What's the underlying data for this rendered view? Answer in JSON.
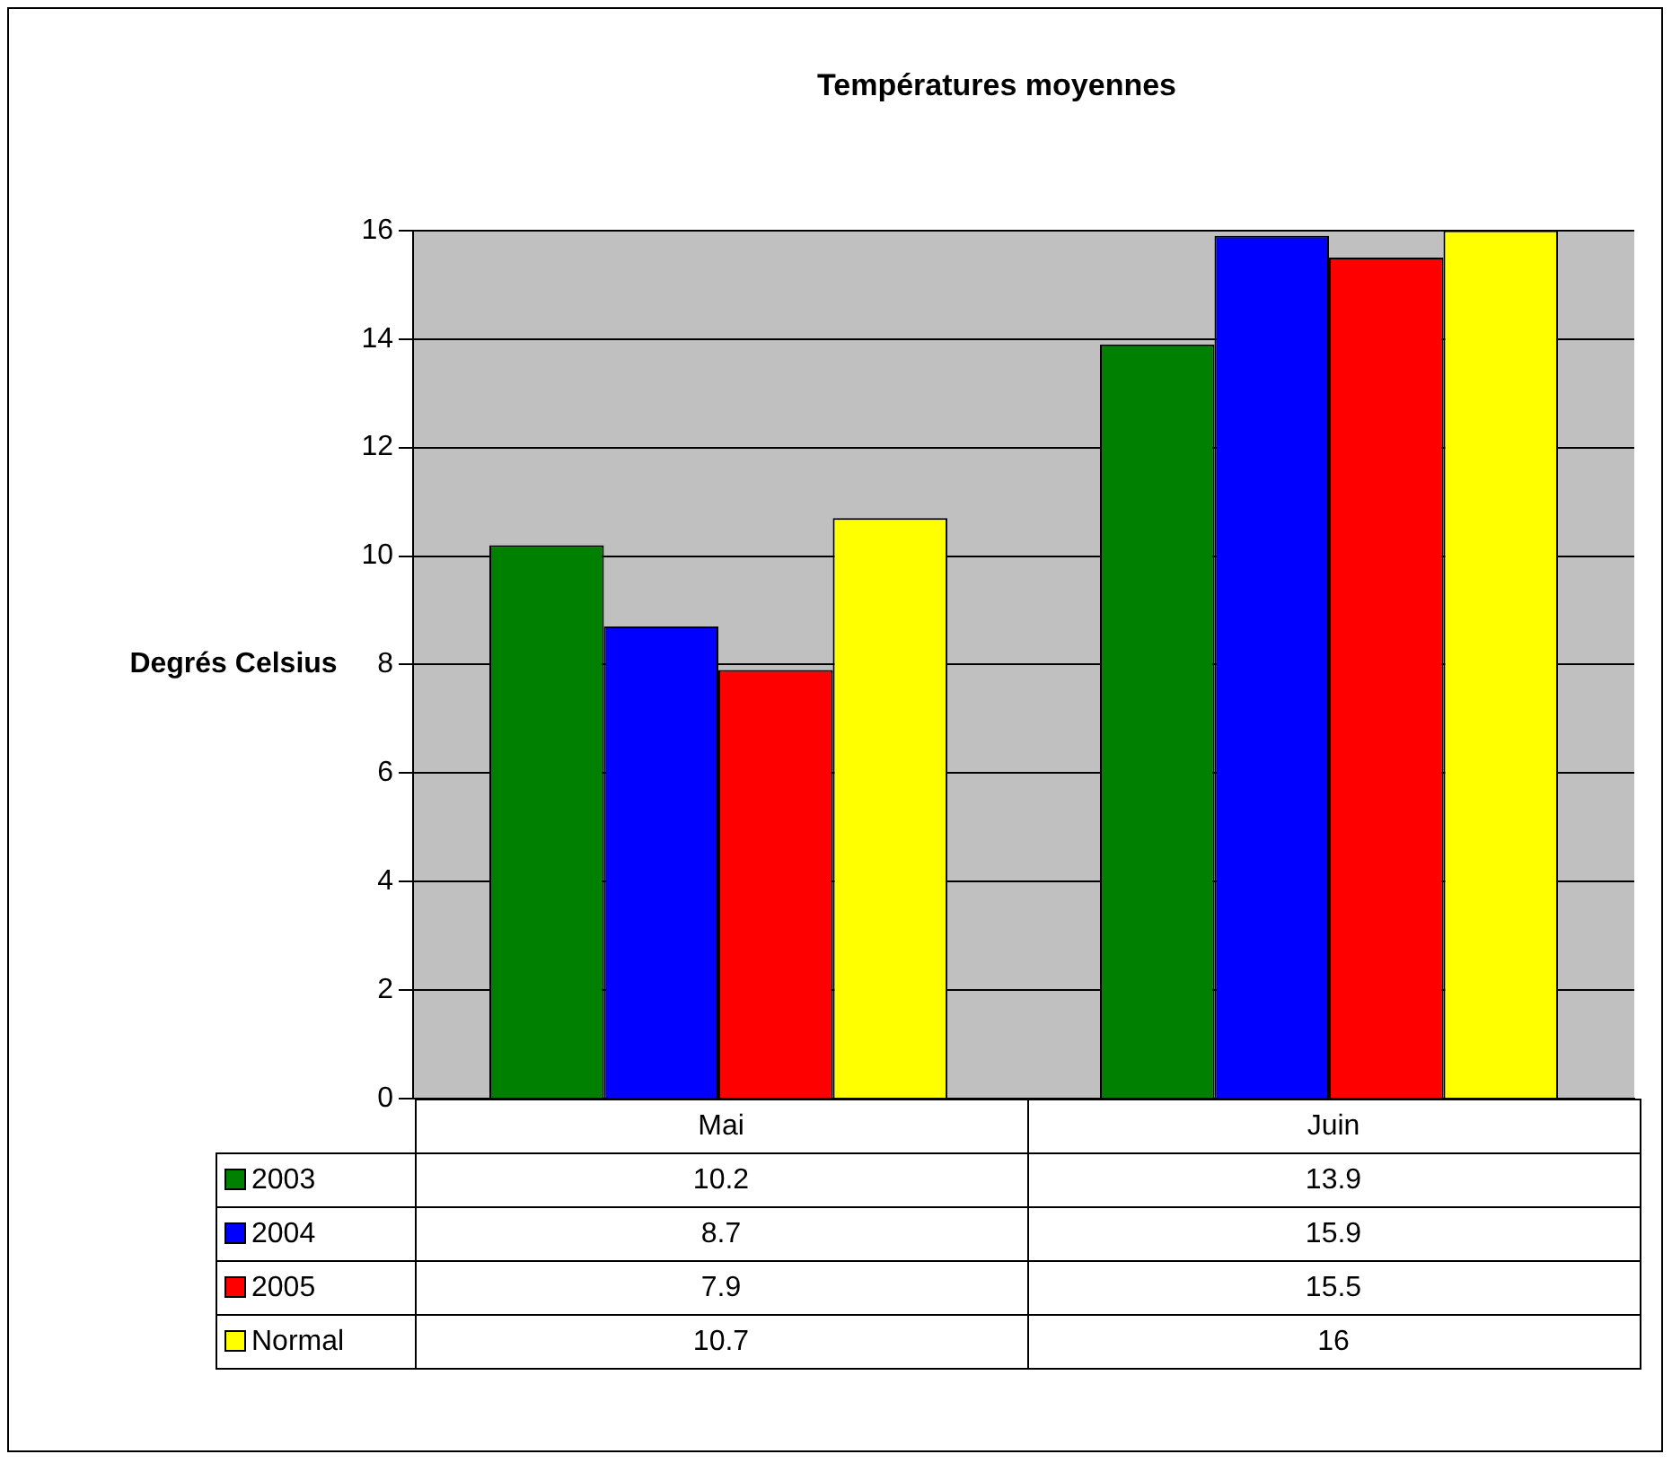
{
  "chart_data": {
    "type": "bar",
    "title": "Températures moyennes",
    "ylabel": "Degrés Celsius",
    "categories": [
      "Mai",
      "Juin"
    ],
    "series": [
      {
        "name": "2003",
        "color": "#008000",
        "values": [
          10.2,
          13.9
        ]
      },
      {
        "name": "2004",
        "color": "#0000ff",
        "values": [
          8.7,
          15.9
        ]
      },
      {
        "name": "2005",
        "color": "#ff0000",
        "values": [
          7.9,
          15.5
        ]
      },
      {
        "name": "Normal",
        "color": "#ffff00",
        "values": [
          10.7,
          16
        ]
      }
    ],
    "ylim": [
      0,
      16
    ],
    "yticks": [
      0,
      2,
      4,
      6,
      8,
      10,
      12,
      14,
      16
    ],
    "grid": "y",
    "data_labels": true,
    "legend": "bottom"
  }
}
